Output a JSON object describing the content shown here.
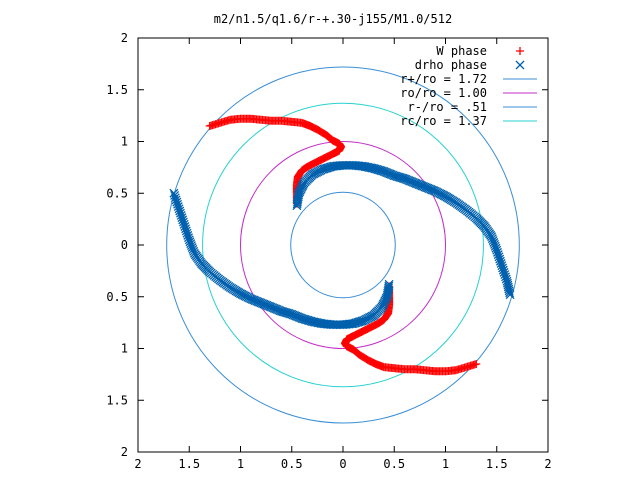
{
  "chart_data": {
    "type": "scatter",
    "title": "m2/n1.5/q1.6/r-+.30-j155/M1.0/512",
    "xlim": [
      -2,
      2
    ],
    "ylim": [
      -2,
      2
    ],
    "x_tick_values": [
      -2,
      -1.5,
      -1,
      -0.5,
      0,
      0.5,
      1,
      1.5,
      2
    ],
    "x_tick_labels": [
      "2",
      "1.5",
      "1",
      "0.5",
      "0",
      "0.5",
      "1",
      "1.5",
      "2"
    ],
    "y_tick_values": [
      2,
      1.5,
      1,
      0.5,
      0,
      -0.5,
      -1,
      -1.5,
      -2
    ],
    "y_tick_labels": [
      "2",
      "1.5",
      "1",
      "0.5",
      "0",
      "0.5",
      "1",
      "1.5",
      "2"
    ],
    "grid": false,
    "legend_position": "top-right",
    "series": [
      {
        "name": "W phase",
        "marker": "plus",
        "color": "#ff0000",
        "arms": [
          [
            [
              -1.3,
              1.15
            ],
            [
              -1.2,
              1.18
            ],
            [
              -1.1,
              1.21
            ],
            [
              -1.0,
              1.22
            ],
            [
              -0.9,
              1.22
            ],
            [
              -0.8,
              1.21
            ],
            [
              -0.7,
              1.2
            ],
            [
              -0.6,
              1.2
            ],
            [
              -0.5,
              1.19
            ],
            [
              -0.4,
              1.18
            ],
            [
              -0.32,
              1.15
            ],
            [
              -0.24,
              1.11
            ],
            [
              -0.16,
              1.06
            ],
            [
              -0.1,
              1.01
            ],
            [
              -0.04,
              0.98
            ],
            [
              -0.02,
              0.95
            ],
            [
              -0.04,
              0.91
            ],
            [
              -0.1,
              0.88
            ],
            [
              -0.18,
              0.84
            ],
            [
              -0.26,
              0.8
            ],
            [
              -0.34,
              0.76
            ],
            [
              -0.4,
              0.72
            ],
            [
              -0.44,
              0.66
            ],
            [
              -0.45,
              0.58
            ],
            [
              -0.45,
              0.5
            ],
            [
              -0.45,
              0.4
            ]
          ],
          [
            [
              1.3,
              -1.15
            ],
            [
              1.2,
              -1.18
            ],
            [
              1.1,
              -1.21
            ],
            [
              1.0,
              -1.22
            ],
            [
              0.9,
              -1.22
            ],
            [
              0.8,
              -1.21
            ],
            [
              0.7,
              -1.2
            ],
            [
              0.6,
              -1.2
            ],
            [
              0.5,
              -1.19
            ],
            [
              0.4,
              -1.18
            ],
            [
              0.32,
              -1.15
            ],
            [
              0.24,
              -1.11
            ],
            [
              0.16,
              -1.06
            ],
            [
              0.1,
              -1.01
            ],
            [
              0.04,
              -0.98
            ],
            [
              0.02,
              -0.95
            ],
            [
              0.04,
              -0.91
            ],
            [
              0.1,
              -0.88
            ],
            [
              0.18,
              -0.84
            ],
            [
              0.26,
              -0.8
            ],
            [
              0.34,
              -0.76
            ],
            [
              0.4,
              -0.72
            ],
            [
              0.44,
              -0.66
            ],
            [
              0.45,
              -0.58
            ],
            [
              0.45,
              -0.5
            ],
            [
              0.45,
              -0.4
            ]
          ]
        ]
      },
      {
        "name": "drho phase",
        "marker": "cross",
        "color": "#0060ad",
        "arms": [
          [
            [
              -0.45,
              0.38
            ],
            [
              -0.43,
              0.5
            ],
            [
              -0.38,
              0.6
            ],
            [
              -0.3,
              0.68
            ],
            [
              -0.2,
              0.73
            ],
            [
              -0.1,
              0.76
            ],
            [
              0.0,
              0.77
            ],
            [
              0.1,
              0.77
            ],
            [
              0.2,
              0.76
            ],
            [
              0.3,
              0.74
            ],
            [
              0.4,
              0.71
            ],
            [
              0.5,
              0.67
            ],
            [
              0.6,
              0.64
            ],
            [
              0.7,
              0.6
            ],
            [
              0.8,
              0.56
            ],
            [
              0.9,
              0.52
            ],
            [
              1.0,
              0.47
            ],
            [
              1.1,
              0.41
            ],
            [
              1.2,
              0.34
            ],
            [
              1.3,
              0.26
            ],
            [
              1.38,
              0.18
            ],
            [
              1.45,
              0.08
            ],
            [
              1.5,
              -0.05
            ],
            [
              1.55,
              -0.2
            ],
            [
              1.6,
              -0.35
            ],
            [
              1.63,
              -0.48
            ]
          ],
          [
            [
              0.45,
              -0.38
            ],
            [
              0.43,
              -0.5
            ],
            [
              0.38,
              -0.6
            ],
            [
              0.3,
              -0.68
            ],
            [
              0.2,
              -0.73
            ],
            [
              0.1,
              -0.76
            ],
            [
              0.0,
              -0.77
            ],
            [
              -0.1,
              -0.77
            ],
            [
              -0.2,
              -0.76
            ],
            [
              -0.3,
              -0.74
            ],
            [
              -0.4,
              -0.71
            ],
            [
              -0.5,
              -0.67
            ],
            [
              -0.6,
              -0.64
            ],
            [
              -0.7,
              -0.6
            ],
            [
              -0.8,
              -0.56
            ],
            [
              -0.9,
              -0.52
            ],
            [
              -1.0,
              -0.47
            ],
            [
              -1.1,
              -0.41
            ],
            [
              -1.2,
              -0.34
            ],
            [
              -1.3,
              -0.26
            ],
            [
              -1.38,
              -0.18
            ],
            [
              -1.45,
              -0.08
            ],
            [
              -1.5,
              0.05
            ],
            [
              -1.55,
              0.2
            ],
            [
              -1.6,
              0.35
            ],
            [
              -1.65,
              0.5
            ]
          ]
        ]
      }
    ],
    "circles": [
      {
        "label": "r+/ro = 1.72",
        "radius": 1.72,
        "color": "#3a8ed6"
      },
      {
        "label": "ro/ro = 1.00",
        "radius": 1.0,
        "color": "#c32ec8"
      },
      {
        "label": "r-/ro = .51",
        "radius": 0.51,
        "color": "#3a8ed6"
      },
      {
        "label": "rc/ro = 1.37",
        "radius": 1.37,
        "color": "#2ad1d1"
      }
    ]
  }
}
